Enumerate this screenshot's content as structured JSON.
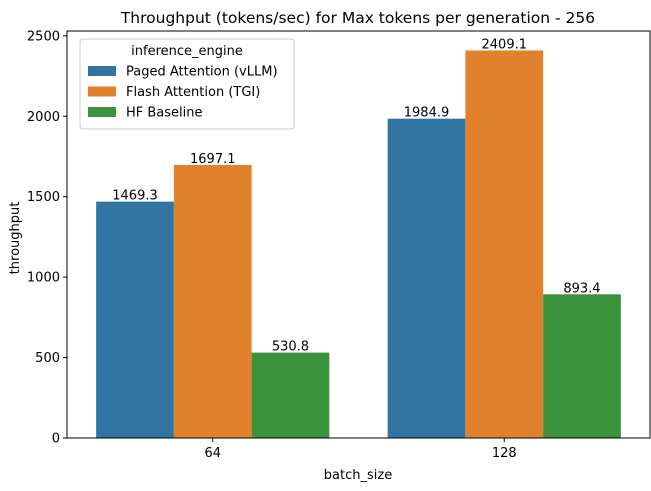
{
  "chart_data": {
    "type": "bar",
    "title": "Throughput (tokens/sec) for Max tokens per generation - 256",
    "xlabel": "batch_size",
    "ylabel": "throughput",
    "categories": [
      "64",
      "128"
    ],
    "ylim": [
      0,
      2530
    ],
    "yticks": [
      0,
      500,
      1000,
      1500,
      2000,
      2500
    ],
    "grid": false,
    "legend": {
      "title": "inference_engine",
      "position": "top-left"
    },
    "series": [
      {
        "name": "Paged Attention (vLLM)",
        "color": "#3274a1",
        "values": [
          1469.3,
          1984.9
        ],
        "labels": [
          "1469.3",
          "1984.9"
        ]
      },
      {
        "name": "Flash Attention (TGI)",
        "color": "#e1812c",
        "values": [
          1697.1,
          2409.1
        ],
        "labels": [
          "1697.1",
          "2409.1"
        ]
      },
      {
        "name": "HF Baseline",
        "color": "#3a923a",
        "values": [
          530.8,
          893.4
        ],
        "labels": [
          "530.8",
          "893.4"
        ]
      }
    ]
  }
}
